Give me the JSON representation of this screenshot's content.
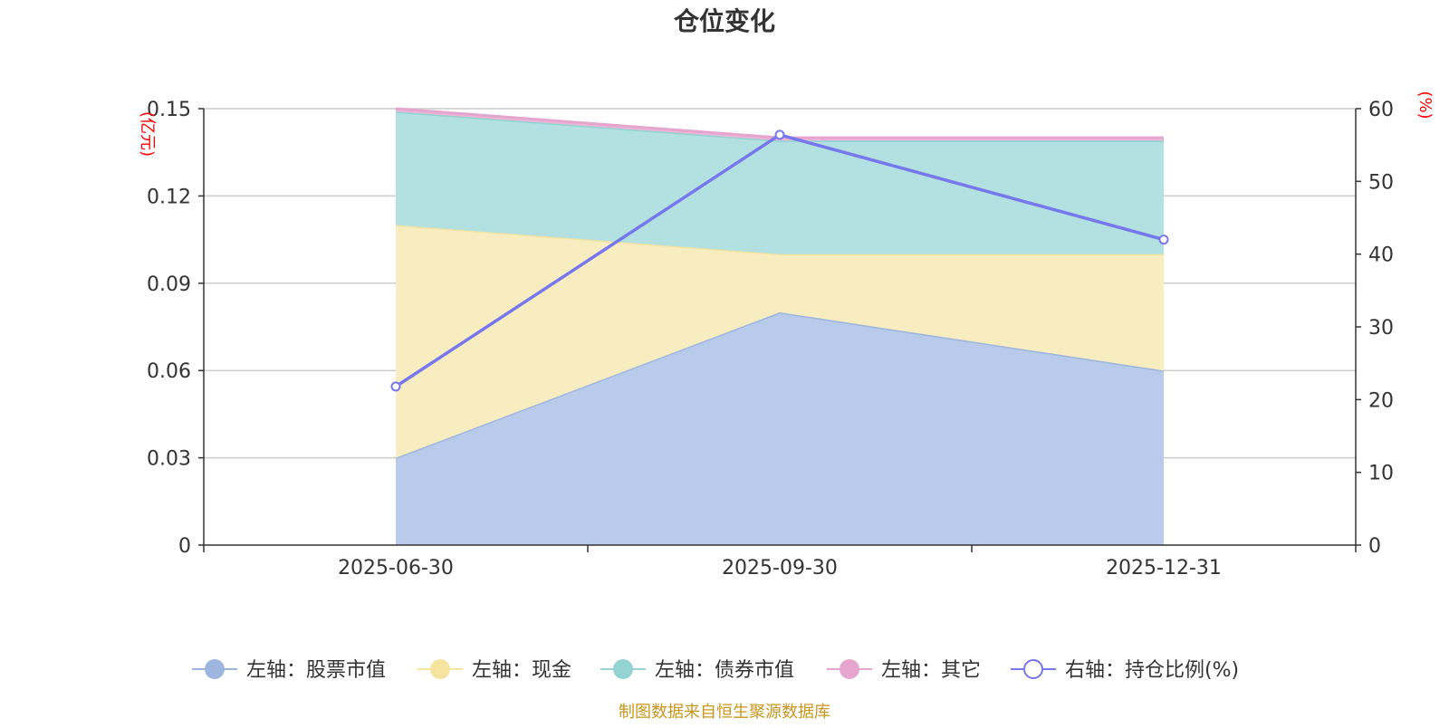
{
  "chart_data": {
    "type": "area",
    "title": "仓位变化",
    "categories": [
      "2025-06-30",
      "2025-09-30",
      "2025-12-31"
    ],
    "left_axis": {
      "unit": "(亿元)",
      "ylim": [
        0,
        0.15
      ],
      "ticks": [
        "0",
        "0.03",
        "0.06",
        "0.09",
        "0.12",
        "0.15"
      ]
    },
    "right_axis": {
      "unit": "(%)",
      "ylim": [
        0,
        60
      ],
      "ticks": [
        "0",
        "10",
        "20",
        "30",
        "40",
        "50",
        "60"
      ]
    },
    "stacked_series": [
      {
        "name": "左轴：股票市值",
        "values": [
          0.03,
          0.08,
          0.06
        ],
        "fill": "#b8cbea",
        "line": "#9db6df"
      },
      {
        "name": "左轴：现金",
        "values": [
          0.08,
          0.02,
          0.04
        ],
        "fill": "#f8edc1",
        "line": "#f5e3a0"
      },
      {
        "name": "左轴：债券市值",
        "values": [
          0.039,
          0.039,
          0.039
        ],
        "fill": "#b3e0e0",
        "line": "#93d3d3"
      },
      {
        "name": "左轴：其它",
        "values": [
          0.001,
          0.001,
          0.001
        ],
        "fill": "#ecb6d9",
        "line": "#e5a5cf"
      }
    ],
    "line_series": {
      "name": "右轴：持仓比例(%)",
      "values": [
        21.8,
        56.4,
        42.0
      ],
      "color": "#7777ee"
    },
    "grid": true,
    "legend_position": "bottom"
  },
  "source_text": "制图数据来自恒生聚源数据库",
  "colors": {
    "axis_unit": "#ff0000",
    "source": "#c8961e",
    "grid": "#cccccc",
    "axis": "#333333"
  }
}
